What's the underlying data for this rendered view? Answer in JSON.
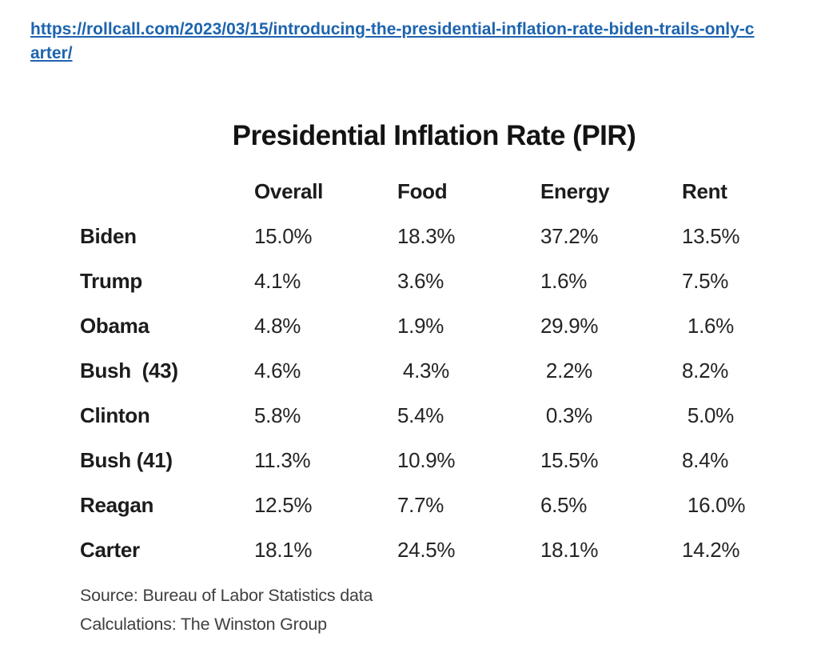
{
  "link": {
    "text": "https://rollcall.com/2023/03/15/introducing-the-presidential-inflation-rate-biden-trails-only-carter/",
    "color": "#1d64af"
  },
  "infographic": {
    "title": "Presidential Inflation Rate (PIR)",
    "headers": {
      "overall": "Overall",
      "food": "Food",
      "energy": "Energy",
      "rent": "Rent"
    },
    "rows": [
      {
        "name": "Biden",
        "overall": "15.0%",
        "food": "18.3%",
        "energy": "37.2%",
        "rent": "13.5%"
      },
      {
        "name": "Trump",
        "overall": "4.1%",
        "food": "3.6%",
        "energy": "1.6%",
        "rent": "7.5%"
      },
      {
        "name": "Obama",
        "overall": "4.8%",
        "food": "1.9%",
        "energy": "29.9%",
        "rent": " 1.6%"
      },
      {
        "name": "Bush  (43)",
        "overall": "4.6%",
        "food": " 4.3%",
        "energy": " 2.2%",
        "rent": "8.2%"
      },
      {
        "name": "Clinton",
        "overall": "5.8%",
        "food": "5.4%",
        "energy": " 0.3%",
        "rent": " 5.0%"
      },
      {
        "name": "Bush (41)",
        "overall": "11.3%",
        "food": "10.9%",
        "energy": "15.5%",
        "rent": "8.4%"
      },
      {
        "name": "Reagan",
        "overall": "12.5%",
        "food": "7.7%",
        "energy": "6.5%",
        "rent": " 16.0%"
      },
      {
        "name": "Carter",
        "overall": "18.1%",
        "food": "24.5%",
        "energy": "18.1%",
        "rent": "14.2%"
      }
    ],
    "source": "Source: Bureau of Labor Statistics data",
    "calculations": "Calculations: The Winston Group"
  },
  "chart_data": {
    "type": "table",
    "title": "Presidential Inflation Rate (PIR)",
    "columns": [
      "Overall",
      "Food",
      "Energy",
      "Rent"
    ],
    "row_labels": [
      "Biden",
      "Trump",
      "Obama",
      "Bush (43)",
      "Clinton",
      "Bush (41)",
      "Reagan",
      "Carter"
    ],
    "series": [
      {
        "name": "Overall",
        "values": [
          15.0,
          4.1,
          4.8,
          4.6,
          5.8,
          11.3,
          12.5,
          18.1
        ]
      },
      {
        "name": "Food",
        "values": [
          18.3,
          3.6,
          1.9,
          4.3,
          5.4,
          10.9,
          7.7,
          24.5
        ]
      },
      {
        "name": "Energy",
        "values": [
          37.2,
          1.6,
          29.9,
          2.2,
          0.3,
          15.5,
          6.5,
          18.1
        ]
      },
      {
        "name": "Rent",
        "values": [
          13.5,
          7.5,
          1.6,
          8.2,
          5.0,
          8.4,
          16.0,
          14.2
        ]
      }
    ],
    "unit": "%",
    "source": "Source: Bureau of Labor Statistics data",
    "calculations": "Calculations: The Winston Group"
  }
}
